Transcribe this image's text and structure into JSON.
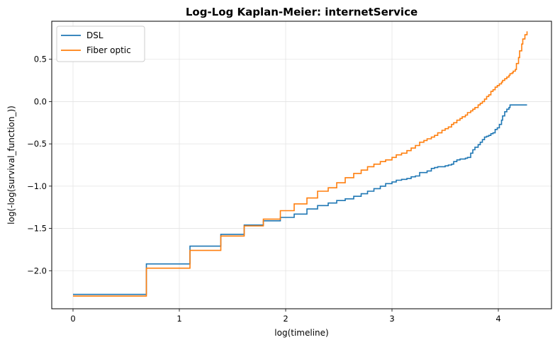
{
  "chart_data": {
    "type": "line",
    "title": "Log-Log Kaplan-Meier: internetService",
    "xlabel": "log(timeline)",
    "ylabel": "log(-log(survival_function_))",
    "xlim": [
      -0.2,
      4.5
    ],
    "ylim": [
      -2.45,
      0.95
    ],
    "xticks": [
      0,
      1,
      2,
      3,
      4
    ],
    "yticks": [
      0.5,
      0.0,
      -0.5,
      -1.0,
      -1.5,
      -2.0
    ],
    "xtick_labels": [
      "0",
      "1",
      "2",
      "3",
      "4"
    ],
    "ytick_labels": [
      "0.5",
      "0.0",
      "−0.5",
      "−1.0",
      "−1.5",
      "−2.0"
    ],
    "grid": true,
    "legend_position": "top-left",
    "step": "post",
    "series": [
      {
        "name": "DSL",
        "color": "#1f77b4",
        "x": [
          0,
          0.69,
          1.1,
          1.39,
          1.61,
          1.79,
          1.95,
          2.08,
          2.2,
          2.3,
          2.4,
          2.48,
          2.56,
          2.64,
          2.71,
          2.77,
          2.83,
          2.89,
          2.94,
          3.0,
          3.04,
          3.09,
          3.14,
          3.18,
          3.22,
          3.26,
          3.3,
          3.33,
          3.37,
          3.4,
          3.43,
          3.47,
          3.5,
          3.53,
          3.56,
          3.58,
          3.61,
          3.64,
          3.66,
          3.69,
          3.71,
          3.74,
          3.76,
          3.78,
          3.81,
          3.83,
          3.85,
          3.87,
          3.89,
          3.91,
          3.93,
          3.95,
          3.97,
          3.99,
          4.01,
          4.03,
          4.04,
          4.06,
          4.08,
          4.1,
          4.11,
          4.27
        ],
        "values": [
          -2.28,
          -1.92,
          -1.71,
          -1.57,
          -1.46,
          -1.41,
          -1.37,
          -1.33,
          -1.27,
          -1.23,
          -1.2,
          -1.17,
          -1.15,
          -1.12,
          -1.09,
          -1.06,
          -1.03,
          -1.0,
          -0.97,
          -0.95,
          -0.93,
          -0.92,
          -0.91,
          -0.89,
          -0.88,
          -0.84,
          -0.84,
          -0.82,
          -0.79,
          -0.78,
          -0.77,
          -0.77,
          -0.76,
          -0.75,
          -0.74,
          -0.71,
          -0.69,
          -0.68,
          -0.68,
          -0.67,
          -0.66,
          -0.61,
          -0.57,
          -0.54,
          -0.51,
          -0.48,
          -0.45,
          -0.42,
          -0.41,
          -0.4,
          -0.38,
          -0.37,
          -0.33,
          -0.31,
          -0.27,
          -0.22,
          -0.17,
          -0.12,
          -0.09,
          -0.07,
          -0.04,
          -0.04
        ]
      },
      {
        "name": "Fiber optic",
        "color": "#ff7f0e",
        "x": [
          0,
          0.69,
          1.1,
          1.39,
          1.61,
          1.79,
          1.95,
          2.08,
          2.2,
          2.3,
          2.4,
          2.48,
          2.56,
          2.64,
          2.71,
          2.77,
          2.83,
          2.89,
          2.94,
          3.0,
          3.04,
          3.09,
          3.14,
          3.18,
          3.22,
          3.26,
          3.3,
          3.33,
          3.37,
          3.4,
          3.43,
          3.47,
          3.5,
          3.53,
          3.56,
          3.58,
          3.61,
          3.64,
          3.66,
          3.69,
          3.71,
          3.74,
          3.76,
          3.78,
          3.81,
          3.83,
          3.85,
          3.87,
          3.89,
          3.91,
          3.93,
          3.95,
          3.97,
          3.99,
          4.01,
          4.03,
          4.04,
          4.06,
          4.08,
          4.1,
          4.11,
          4.13,
          4.14,
          4.16,
          4.17,
          4.19,
          4.2,
          4.22,
          4.23,
          4.25,
          4.27
        ],
        "values": [
          -2.3,
          -1.97,
          -1.76,
          -1.59,
          -1.47,
          -1.39,
          -1.29,
          -1.21,
          -1.14,
          -1.06,
          -1.02,
          -0.96,
          -0.9,
          -0.85,
          -0.81,
          -0.77,
          -0.74,
          -0.71,
          -0.69,
          -0.66,
          -0.63,
          -0.61,
          -0.58,
          -0.55,
          -0.52,
          -0.48,
          -0.46,
          -0.44,
          -0.42,
          -0.4,
          -0.37,
          -0.34,
          -0.32,
          -0.3,
          -0.27,
          -0.25,
          -0.22,
          -0.2,
          -0.18,
          -0.16,
          -0.13,
          -0.11,
          -0.09,
          -0.07,
          -0.04,
          -0.02,
          0.0,
          0.03,
          0.06,
          0.08,
          0.12,
          0.14,
          0.17,
          0.19,
          0.21,
          0.23,
          0.25,
          0.27,
          0.29,
          0.31,
          0.33,
          0.34,
          0.36,
          0.38,
          0.45,
          0.52,
          0.6,
          0.68,
          0.74,
          0.79,
          0.83
        ]
      }
    ]
  }
}
